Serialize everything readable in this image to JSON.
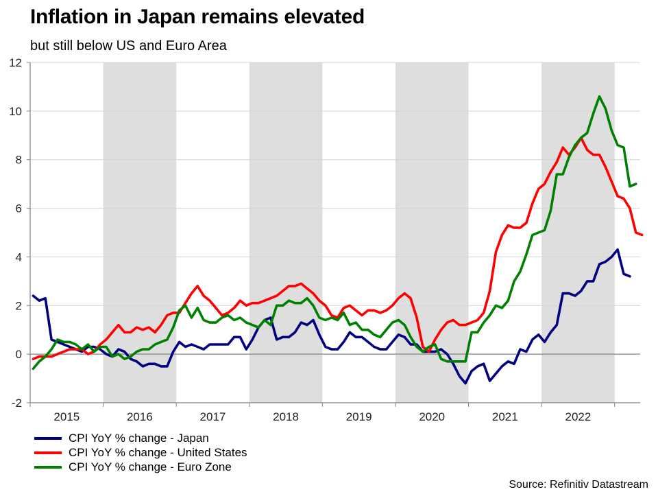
{
  "header": {
    "title": "Inflation in Japan remains elevated",
    "subtitle": "but still below US and Euro Area"
  },
  "source": "Source: Refinitiv Datastream",
  "chart_data": {
    "type": "line",
    "title": "Inflation in Japan remains elevated",
    "subtitle": "but still below US and Euro Area",
    "xlabel": "",
    "ylabel": "",
    "ylim": [
      -2,
      12
    ],
    "yticks": [
      -2,
      0,
      2,
      4,
      6,
      8,
      10,
      12
    ],
    "x_start": "2015-01",
    "x_frequency": "monthly",
    "x_range_years": [
      2015,
      2023.35
    ],
    "xtick_labels": [
      "2015",
      "2016",
      "2017",
      "2018",
      "2019",
      "2020",
      "2021",
      "2022"
    ],
    "shaded_years": [
      2016,
      2018,
      2020,
      2022
    ],
    "grid": "horizontal",
    "legend_position": "bottom-left",
    "series": [
      {
        "name": "CPI YoY % change - Japan",
        "color": "#000080",
        "values": [
          2.4,
          2.2,
          2.3,
          0.6,
          0.5,
          0.4,
          0.3,
          0.2,
          0.1,
          0.3,
          0.3,
          0.2,
          0.0,
          -0.1,
          0.2,
          0.1,
          -0.2,
          -0.3,
          -0.5,
          -0.4,
          -0.4,
          -0.5,
          -0.5,
          0.1,
          0.5,
          0.3,
          0.4,
          0.3,
          0.2,
          0.4,
          0.4,
          0.4,
          0.4,
          0.7,
          0.7,
          0.2,
          0.6,
          1.1,
          1.4,
          1.5,
          0.6,
          0.7,
          0.7,
          0.9,
          1.3,
          1.2,
          1.4,
          0.8,
          0.3,
          0.2,
          0.2,
          0.5,
          0.9,
          0.7,
          0.7,
          0.5,
          0.3,
          0.2,
          0.2,
          0.5,
          0.8,
          0.7,
          0.4,
          0.4,
          0.1,
          0.1,
          0.1,
          0.2,
          0.0,
          -0.4,
          -0.9,
          -1.2,
          -0.7,
          -0.5,
          -0.4,
          -1.1,
          -0.8,
          -0.5,
          -0.3,
          -0.4,
          0.2,
          0.1,
          0.6,
          0.8,
          0.5,
          0.9,
          1.2,
          2.5,
          2.5,
          2.4,
          2.6,
          3.0,
          3.0,
          3.7,
          3.8,
          4.0,
          4.3,
          3.3,
          3.2
        ]
      },
      {
        "name": "CPI YoY % change - United States",
        "color": "#ff0000",
        "values": [
          -0.2,
          -0.1,
          -0.1,
          -0.1,
          0.0,
          0.1,
          0.2,
          0.2,
          0.2,
          0.0,
          0.1,
          0.4,
          0.6,
          0.9,
          1.2,
          0.9,
          0.9,
          1.1,
          1.0,
          1.1,
          0.9,
          1.2,
          1.6,
          1.7,
          1.7,
          2.1,
          2.5,
          2.8,
          2.4,
          2.2,
          1.9,
          1.6,
          1.7,
          1.9,
          2.2,
          2.0,
          2.1,
          2.1,
          2.2,
          2.3,
          2.4,
          2.6,
          2.8,
          2.8,
          2.9,
          2.7,
          2.5,
          2.2,
          2.0,
          1.6,
          1.5,
          1.9,
          2.0,
          1.8,
          1.6,
          1.8,
          1.8,
          1.7,
          1.8,
          2.0,
          2.3,
          2.5,
          2.3,
          1.5,
          0.3,
          0.1,
          0.6,
          1.0,
          1.3,
          1.4,
          1.2,
          1.2,
          1.3,
          1.4,
          1.7,
          2.6,
          4.2,
          4.9,
          5.3,
          5.2,
          5.2,
          5.4,
          6.2,
          6.8,
          7.0,
          7.5,
          7.9,
          8.5,
          8.2,
          8.5,
          8.9,
          8.4,
          8.2,
          8.2,
          7.7,
          7.1,
          6.5,
          6.4,
          6.0,
          5.0,
          4.9
        ]
      },
      {
        "name": "CPI YoY % change - Euro Zone",
        "color": "#008000",
        "values": [
          -0.6,
          -0.3,
          -0.1,
          0.2,
          0.6,
          0.5,
          0.5,
          0.4,
          0.2,
          0.4,
          0.1,
          0.3,
          0.3,
          -0.1,
          0.0,
          -0.2,
          -0.1,
          0.1,
          0.2,
          0.2,
          0.4,
          0.5,
          0.6,
          1.1,
          1.8,
          2.0,
          1.5,
          1.9,
          1.4,
          1.3,
          1.3,
          1.5,
          1.6,
          1.4,
          1.5,
          1.3,
          1.2,
          1.1,
          1.4,
          1.2,
          2.0,
          2.0,
          2.2,
          2.1,
          2.1,
          2.3,
          2.0,
          1.5,
          1.4,
          1.5,
          1.4,
          1.7,
          1.2,
          1.3,
          1.0,
          1.0,
          0.8,
          0.7,
          1.0,
          1.3,
          1.4,
          1.2,
          0.7,
          0.3,
          0.1,
          0.3,
          0.4,
          -0.2,
          -0.3,
          -0.3,
          -0.3,
          -0.3,
          0.9,
          0.9,
          1.3,
          1.6,
          2.0,
          1.9,
          2.2,
          3.0,
          3.4,
          4.1,
          4.9,
          5.0,
          5.1,
          5.9,
          7.4,
          7.4,
          8.1,
          8.6,
          8.9,
          9.1,
          9.9,
          10.6,
          10.1,
          9.2,
          8.6,
          8.5,
          6.9,
          7.0
        ]
      }
    ]
  },
  "legend": [
    {
      "label": "CPI YoY % change - Japan",
      "color": "#000080"
    },
    {
      "label": "CPI YoY % change - United States",
      "color": "#ff0000"
    },
    {
      "label": "CPI YoY % change - Euro Zone",
      "color": "#008000"
    }
  ]
}
